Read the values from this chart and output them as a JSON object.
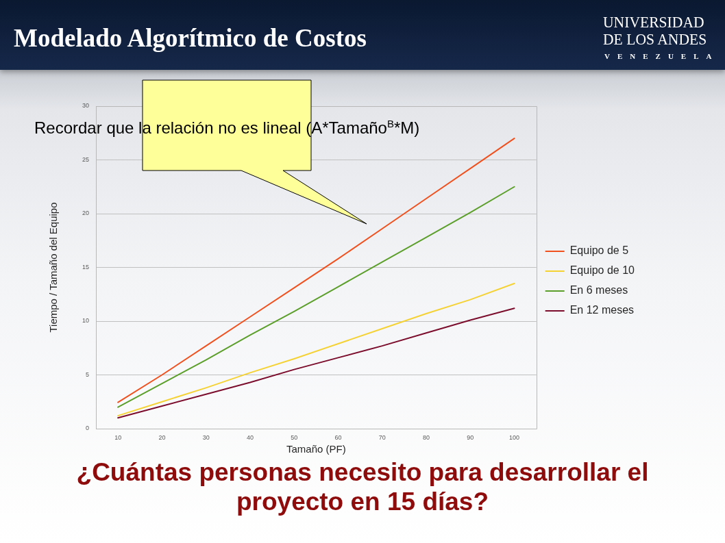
{
  "chart_data": {
    "type": "line",
    "title": "Modelado Algorítmico de Costos",
    "xlabel": "Tamaño (PF)",
    "ylabel": "Tiempo / Tamaño del Equipo",
    "annotations": [
      "Recordar que la relación no es lineal (A*Tamaño$^{B}$*M)",
      "¿Cuántas personas necesito para desarrollar el proyecto en 15 días?",
      "UNIVERSIDAD DE LOS ANDES",
      "VENEZUELA"
    ],
    "categories": [
      "10",
      "20",
      "30",
      "40",
      "50",
      "60",
      "70",
      "80",
      "90",
      "100"
    ],
    "series": [
      {
        "name": "Equipo de 5",
        "color": "#f0501e",
        "values": [
          2.45,
          5.0,
          7.7,
          10.4,
          13.1,
          15.8,
          18.6,
          21.4,
          24.2,
          27.0
        ]
      },
      {
        "name": "Equipo de 10",
        "color": "#f5d233",
        "values": [
          1.2,
          2.5,
          3.8,
          5.2,
          6.5,
          7.9,
          9.3,
          10.7,
          12.0,
          13.5
        ]
      },
      {
        "name": "En 6 meses",
        "color": "#5b9f2a",
        "values": [
          2.0,
          4.2,
          6.4,
          8.7,
          10.9,
          13.2,
          15.5,
          17.8,
          20.1,
          22.5
        ]
      },
      {
        "name": "En 12 meses",
        "color": "#7b0c2c",
        "values": [
          1.0,
          2.1,
          3.2,
          4.3,
          5.5,
          6.6,
          7.7,
          8.9,
          10.1,
          11.2
        ]
      }
    ],
    "ylim": [
      0,
      30
    ],
    "yticks": [
      0,
      5,
      10,
      15,
      20,
      25,
      30
    ],
    "grid": "y",
    "legend": "right",
    "marker": "none",
    "line_style": "solid"
  }
}
